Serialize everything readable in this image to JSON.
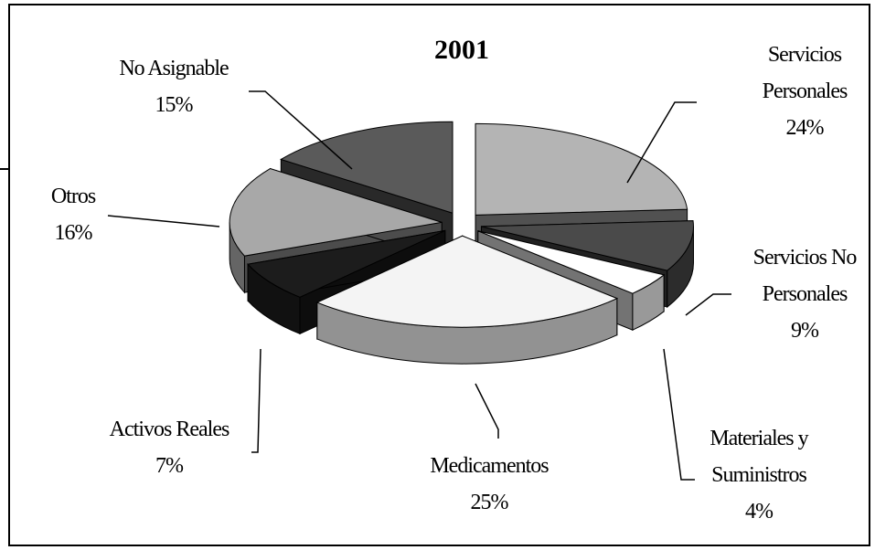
{
  "chart_data": {
    "type": "pie3d",
    "title": "2001",
    "categories": [
      "Servicios Personales",
      "Servicios No Personales",
      "Materiales y Suministros",
      "Medicamentos",
      "Activos Reales",
      "Otros",
      "No Asignable"
    ],
    "values": [
      24,
      9,
      4,
      25,
      7,
      16,
      15
    ],
    "value_labels": [
      "24%",
      "9%",
      "4%",
      "25%",
      "7%",
      "16%",
      "15%"
    ],
    "colors": [
      "#b4b4b4",
      "#4a4a4a",
      "#ffffff",
      "#f4f4f4",
      "#1c1c1c",
      "#a8a8a8",
      "#5a5a5a"
    ]
  }
}
